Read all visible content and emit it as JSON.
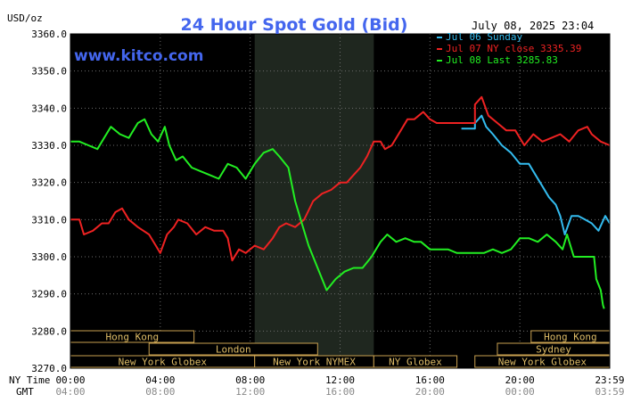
{
  "chart_data": {
    "type": "line",
    "title": "24 Hour Spot Gold (Bid)",
    "ylabel": "USD/oz",
    "timestamp": "July 08, 2025 23:04",
    "watermark": "www.kitco.com",
    "ylim": [
      3270,
      3360
    ],
    "yticks": [
      "3360.0",
      "3350.0",
      "3340.0",
      "3330.0",
      "3320.0",
      "3310.0",
      "3300.0",
      "3290.0",
      "3280.0",
      "3270.0"
    ],
    "ytick_values": [
      3360,
      3350,
      3340,
      3330,
      3320,
      3310,
      3300,
      3290,
      3280,
      3270
    ],
    "xlim": [
      0,
      24
    ],
    "row_labels": {
      "ny": "NY Time",
      "gmt": "GMT"
    },
    "xticks": [
      {
        "h": 0,
        "ny": "00:00",
        "gmt": "04:00"
      },
      {
        "h": 4,
        "ny": "04:00",
        "gmt": "08:00"
      },
      {
        "h": 8,
        "ny": "08:00",
        "gmt": "12:00"
      },
      {
        "h": 12,
        "ny": "12:00",
        "gmt": "16:00"
      },
      {
        "h": 16,
        "ny": "16:00",
        "gmt": "20:00"
      },
      {
        "h": 20,
        "ny": "20:00",
        "gmt": "00:00"
      },
      {
        "h": 24,
        "ny": "23:59",
        "gmt": "03:59"
      }
    ],
    "shaded_period": [
      8.2,
      13.5
    ],
    "sessions": [
      {
        "label": "Hong Kong",
        "start": 0,
        "end": 5.5,
        "row": 0
      },
      {
        "label": "Hong Kong",
        "start": 20.5,
        "end": 24,
        "row": 0
      },
      {
        "label": "London",
        "start": 3.5,
        "end": 11,
        "row": 1
      },
      {
        "label": "Sydney",
        "start": 19,
        "end": 24,
        "row": 1
      },
      {
        "label": "New York Globex",
        "start": 0,
        "end": 8.2,
        "row": 2
      },
      {
        "label": "New York NYMEX",
        "start": 8.2,
        "end": 13.5,
        "row": 2
      },
      {
        "label": "NY Globex",
        "start": 13.5,
        "end": 17.2,
        "row": 2
      },
      {
        "label": "New York Globex",
        "start": 18,
        "end": 24,
        "row": 2
      }
    ],
    "legend_position": "top-right",
    "series": [
      {
        "name": "Jul 06 Sunday",
        "color": "#33bbee",
        "points": [
          [
            17.4,
            3334.5
          ],
          [
            18.0,
            3334.5
          ],
          [
            18.0,
            3336
          ],
          [
            18.3,
            3338
          ],
          [
            18.5,
            3335
          ],
          [
            18.8,
            3333
          ],
          [
            19.2,
            3330
          ],
          [
            19.6,
            3328
          ],
          [
            20.0,
            3325
          ],
          [
            20.4,
            3325
          ],
          [
            20.7,
            3322
          ],
          [
            21.0,
            3319
          ],
          [
            21.3,
            3316
          ],
          [
            21.6,
            3314
          ],
          [
            21.8,
            3311
          ],
          [
            22.0,
            3306
          ],
          [
            22.3,
            3311
          ],
          [
            22.6,
            3311
          ],
          [
            22.9,
            3310
          ],
          [
            23.2,
            3309
          ],
          [
            23.5,
            3307
          ],
          [
            23.8,
            3311
          ],
          [
            24.0,
            3309
          ]
        ]
      },
      {
        "name": "Jul 07 NY close 3335.39",
        "color": "#ee2222",
        "points": [
          [
            0,
            3310
          ],
          [
            0.4,
            3310
          ],
          [
            0.6,
            3306
          ],
          [
            1.0,
            3307
          ],
          [
            1.4,
            3309
          ],
          [
            1.7,
            3309
          ],
          [
            2.0,
            3312
          ],
          [
            2.3,
            3313
          ],
          [
            2.6,
            3310
          ],
          [
            3.0,
            3308
          ],
          [
            3.5,
            3306
          ],
          [
            3.8,
            3303
          ],
          [
            4.0,
            3301
          ],
          [
            4.3,
            3306
          ],
          [
            4.6,
            3308
          ],
          [
            4.8,
            3310
          ],
          [
            5.2,
            3309
          ],
          [
            5.6,
            3306
          ],
          [
            6.0,
            3308
          ],
          [
            6.4,
            3307
          ],
          [
            6.8,
            3307
          ],
          [
            7.0,
            3305
          ],
          [
            7.2,
            3299
          ],
          [
            7.5,
            3302
          ],
          [
            7.8,
            3301
          ],
          [
            8.2,
            3303
          ],
          [
            8.6,
            3302
          ],
          [
            9.0,
            3305
          ],
          [
            9.3,
            3308
          ],
          [
            9.6,
            3309
          ],
          [
            10.0,
            3308
          ],
          [
            10.4,
            3310
          ],
          [
            10.8,
            3315
          ],
          [
            11.2,
            3317
          ],
          [
            11.6,
            3318
          ],
          [
            12.0,
            3320
          ],
          [
            12.3,
            3320
          ],
          [
            12.6,
            3322
          ],
          [
            12.9,
            3324
          ],
          [
            13.2,
            3327
          ],
          [
            13.5,
            3331
          ],
          [
            13.8,
            3331
          ],
          [
            14.0,
            3329
          ],
          [
            14.3,
            3330
          ],
          [
            14.7,
            3334
          ],
          [
            15.0,
            3337
          ],
          [
            15.3,
            3337
          ],
          [
            15.7,
            3339
          ],
          [
            16.0,
            3337
          ],
          [
            16.3,
            3336
          ],
          [
            16.7,
            3336
          ],
          [
            17.0,
            3336
          ],
          [
            17.5,
            3336
          ],
          [
            18.0,
            3336
          ],
          [
            18.0,
            3341
          ],
          [
            18.3,
            3343
          ],
          [
            18.6,
            3338
          ],
          [
            19.0,
            3336
          ],
          [
            19.4,
            3334
          ],
          [
            19.8,
            3334
          ],
          [
            20.2,
            3330
          ],
          [
            20.6,
            3333
          ],
          [
            21.0,
            3331
          ],
          [
            21.4,
            3332
          ],
          [
            21.8,
            3333
          ],
          [
            22.2,
            3331
          ],
          [
            22.6,
            3334
          ],
          [
            23.0,
            3335
          ],
          [
            23.2,
            3333
          ],
          [
            23.6,
            3331
          ],
          [
            24.0,
            3330
          ]
        ]
      },
      {
        "name": "Jul 08 Last 3285.83",
        "color": "#22ee22",
        "points": [
          [
            0,
            3331
          ],
          [
            0.4,
            3331
          ],
          [
            0.8,
            3330
          ],
          [
            1.2,
            3329
          ],
          [
            1.5,
            3332
          ],
          [
            1.8,
            3335
          ],
          [
            2.2,
            3333
          ],
          [
            2.6,
            3332
          ],
          [
            3.0,
            3336
          ],
          [
            3.3,
            3337
          ],
          [
            3.6,
            3333
          ],
          [
            3.9,
            3331
          ],
          [
            4.2,
            3335
          ],
          [
            4.4,
            3330
          ],
          [
            4.7,
            3326
          ],
          [
            5.0,
            3327
          ],
          [
            5.4,
            3324
          ],
          [
            5.8,
            3323
          ],
          [
            6.2,
            3322
          ],
          [
            6.6,
            3321
          ],
          [
            7.0,
            3325
          ],
          [
            7.4,
            3324
          ],
          [
            7.8,
            3321
          ],
          [
            8.2,
            3325
          ],
          [
            8.6,
            3328
          ],
          [
            9.0,
            3329
          ],
          [
            9.3,
            3327
          ],
          [
            9.7,
            3324
          ],
          [
            10.0,
            3315
          ],
          [
            10.3,
            3309
          ],
          [
            10.6,
            3303
          ],
          [
            11.0,
            3297
          ],
          [
            11.4,
            3291
          ],
          [
            11.8,
            3294
          ],
          [
            12.2,
            3296
          ],
          [
            12.6,
            3297
          ],
          [
            13.0,
            3297
          ],
          [
            13.4,
            3300
          ],
          [
            13.8,
            3304
          ],
          [
            14.1,
            3306
          ],
          [
            14.5,
            3304
          ],
          [
            14.9,
            3305
          ],
          [
            15.3,
            3304
          ],
          [
            15.6,
            3304
          ],
          [
            16.0,
            3302
          ],
          [
            16.4,
            3302
          ],
          [
            16.8,
            3302
          ],
          [
            17.2,
            3301
          ],
          [
            17.6,
            3301
          ],
          [
            18.0,
            3301
          ],
          [
            18.4,
            3301
          ],
          [
            18.8,
            3302
          ],
          [
            19.2,
            3301
          ],
          [
            19.6,
            3302
          ],
          [
            20.0,
            3305
          ],
          [
            20.4,
            3305
          ],
          [
            20.8,
            3304
          ],
          [
            21.2,
            3306
          ],
          [
            21.6,
            3304
          ],
          [
            21.9,
            3302
          ],
          [
            22.1,
            3306
          ],
          [
            22.4,
            3300
          ],
          [
            22.7,
            3300
          ],
          [
            23.0,
            3300
          ],
          [
            23.3,
            3300
          ],
          [
            23.4,
            3294
          ],
          [
            23.6,
            3291
          ],
          [
            23.7,
            3287
          ],
          [
            23.75,
            3286
          ]
        ]
      }
    ]
  }
}
